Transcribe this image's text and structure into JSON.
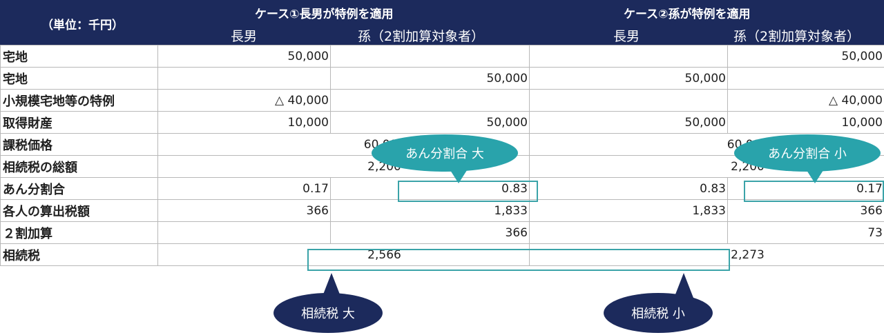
{
  "header": {
    "unit": "（単位：千円）",
    "case1_title": "ケース①長男が特例を適用",
    "case2_title": "ケース②孫が特例を適用",
    "col_eldest": "長男",
    "col_grandchild": "孫（2割加算対象者）"
  },
  "rows": [
    {
      "label": "宅地",
      "c1a": "50,000",
      "c1b": "",
      "c2a": "",
      "c2b": "50,000"
    },
    {
      "label": "宅地",
      "c1a": "",
      "c1b": "50,000",
      "c2a": "50,000",
      "c2b": ""
    },
    {
      "label": "小規模宅地等の特例",
      "c1a": "△ 40,000",
      "c1b": "",
      "c2a": "",
      "c2b": "△ 40,000"
    },
    {
      "label": "取得財産",
      "c1a": "10,000",
      "c1b": "50,000",
      "c2a": "50,000",
      "c2b": "10,000"
    },
    {
      "label": "課税価格",
      "case1": "60,000",
      "case2": "60,000"
    },
    {
      "label": "相続税の総額",
      "case1": "2,200",
      "case2": "2,200"
    },
    {
      "label": "あん分割合",
      "c1a": "0.17",
      "c1b": "0.83",
      "c2a": "0.83",
      "c2b": "0.17"
    },
    {
      "label": "各人の算出税額",
      "c1a": "366",
      "c1b": "1,833",
      "c2a": "1,833",
      "c2b": "366"
    },
    {
      "label": "２割加算",
      "c1a": "",
      "c1b": "366",
      "c2a": "",
      "c2b": "73"
    },
    {
      "label": "相続税",
      "case1": "2,566",
      "case2": "2,273"
    }
  ],
  "callouts": {
    "ratio_large": "あん分割合 大",
    "ratio_small": "あん分割合 小",
    "tax_large": "相続税 大",
    "tax_small": "相続税 小"
  },
  "colors": {
    "header_bg": "#1c2a5c",
    "accent_teal": "#29a3ab",
    "highlight_border": "#3aa3a8"
  }
}
